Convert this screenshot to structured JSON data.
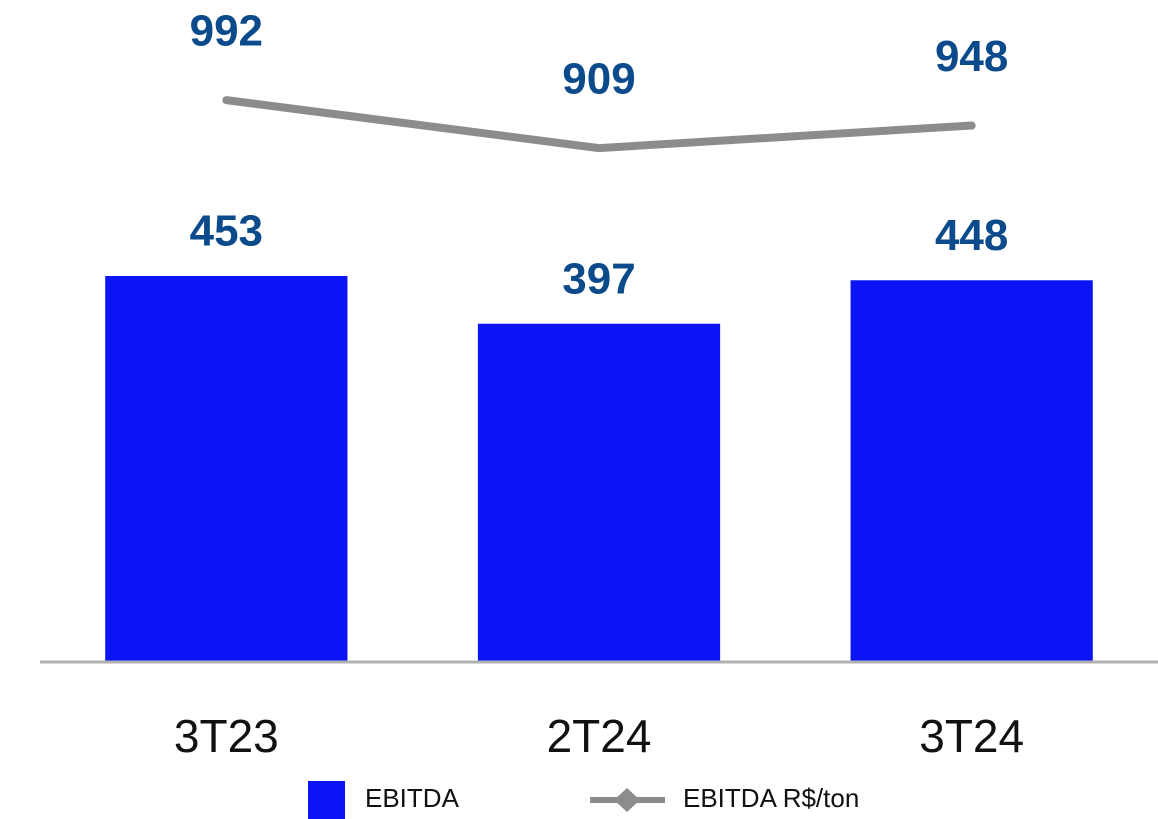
{
  "chart_data": {
    "type": "bar_line",
    "categories": [
      "3T23",
      "2T24",
      "3T24"
    ],
    "series": [
      {
        "name": "EBITDA",
        "color": "#0a14f5",
        "values": [
          453,
          397,
          448
        ]
      },
      {
        "name": "EBITDA R$/ton",
        "color": "#8c8c8c",
        "axis": "y2",
        "values": [
          992,
          909,
          948
        ]
      }
    ],
    "ylim": [
      0,
      730
    ],
    "y2lim": [
      20,
      1096
    ]
  }
}
